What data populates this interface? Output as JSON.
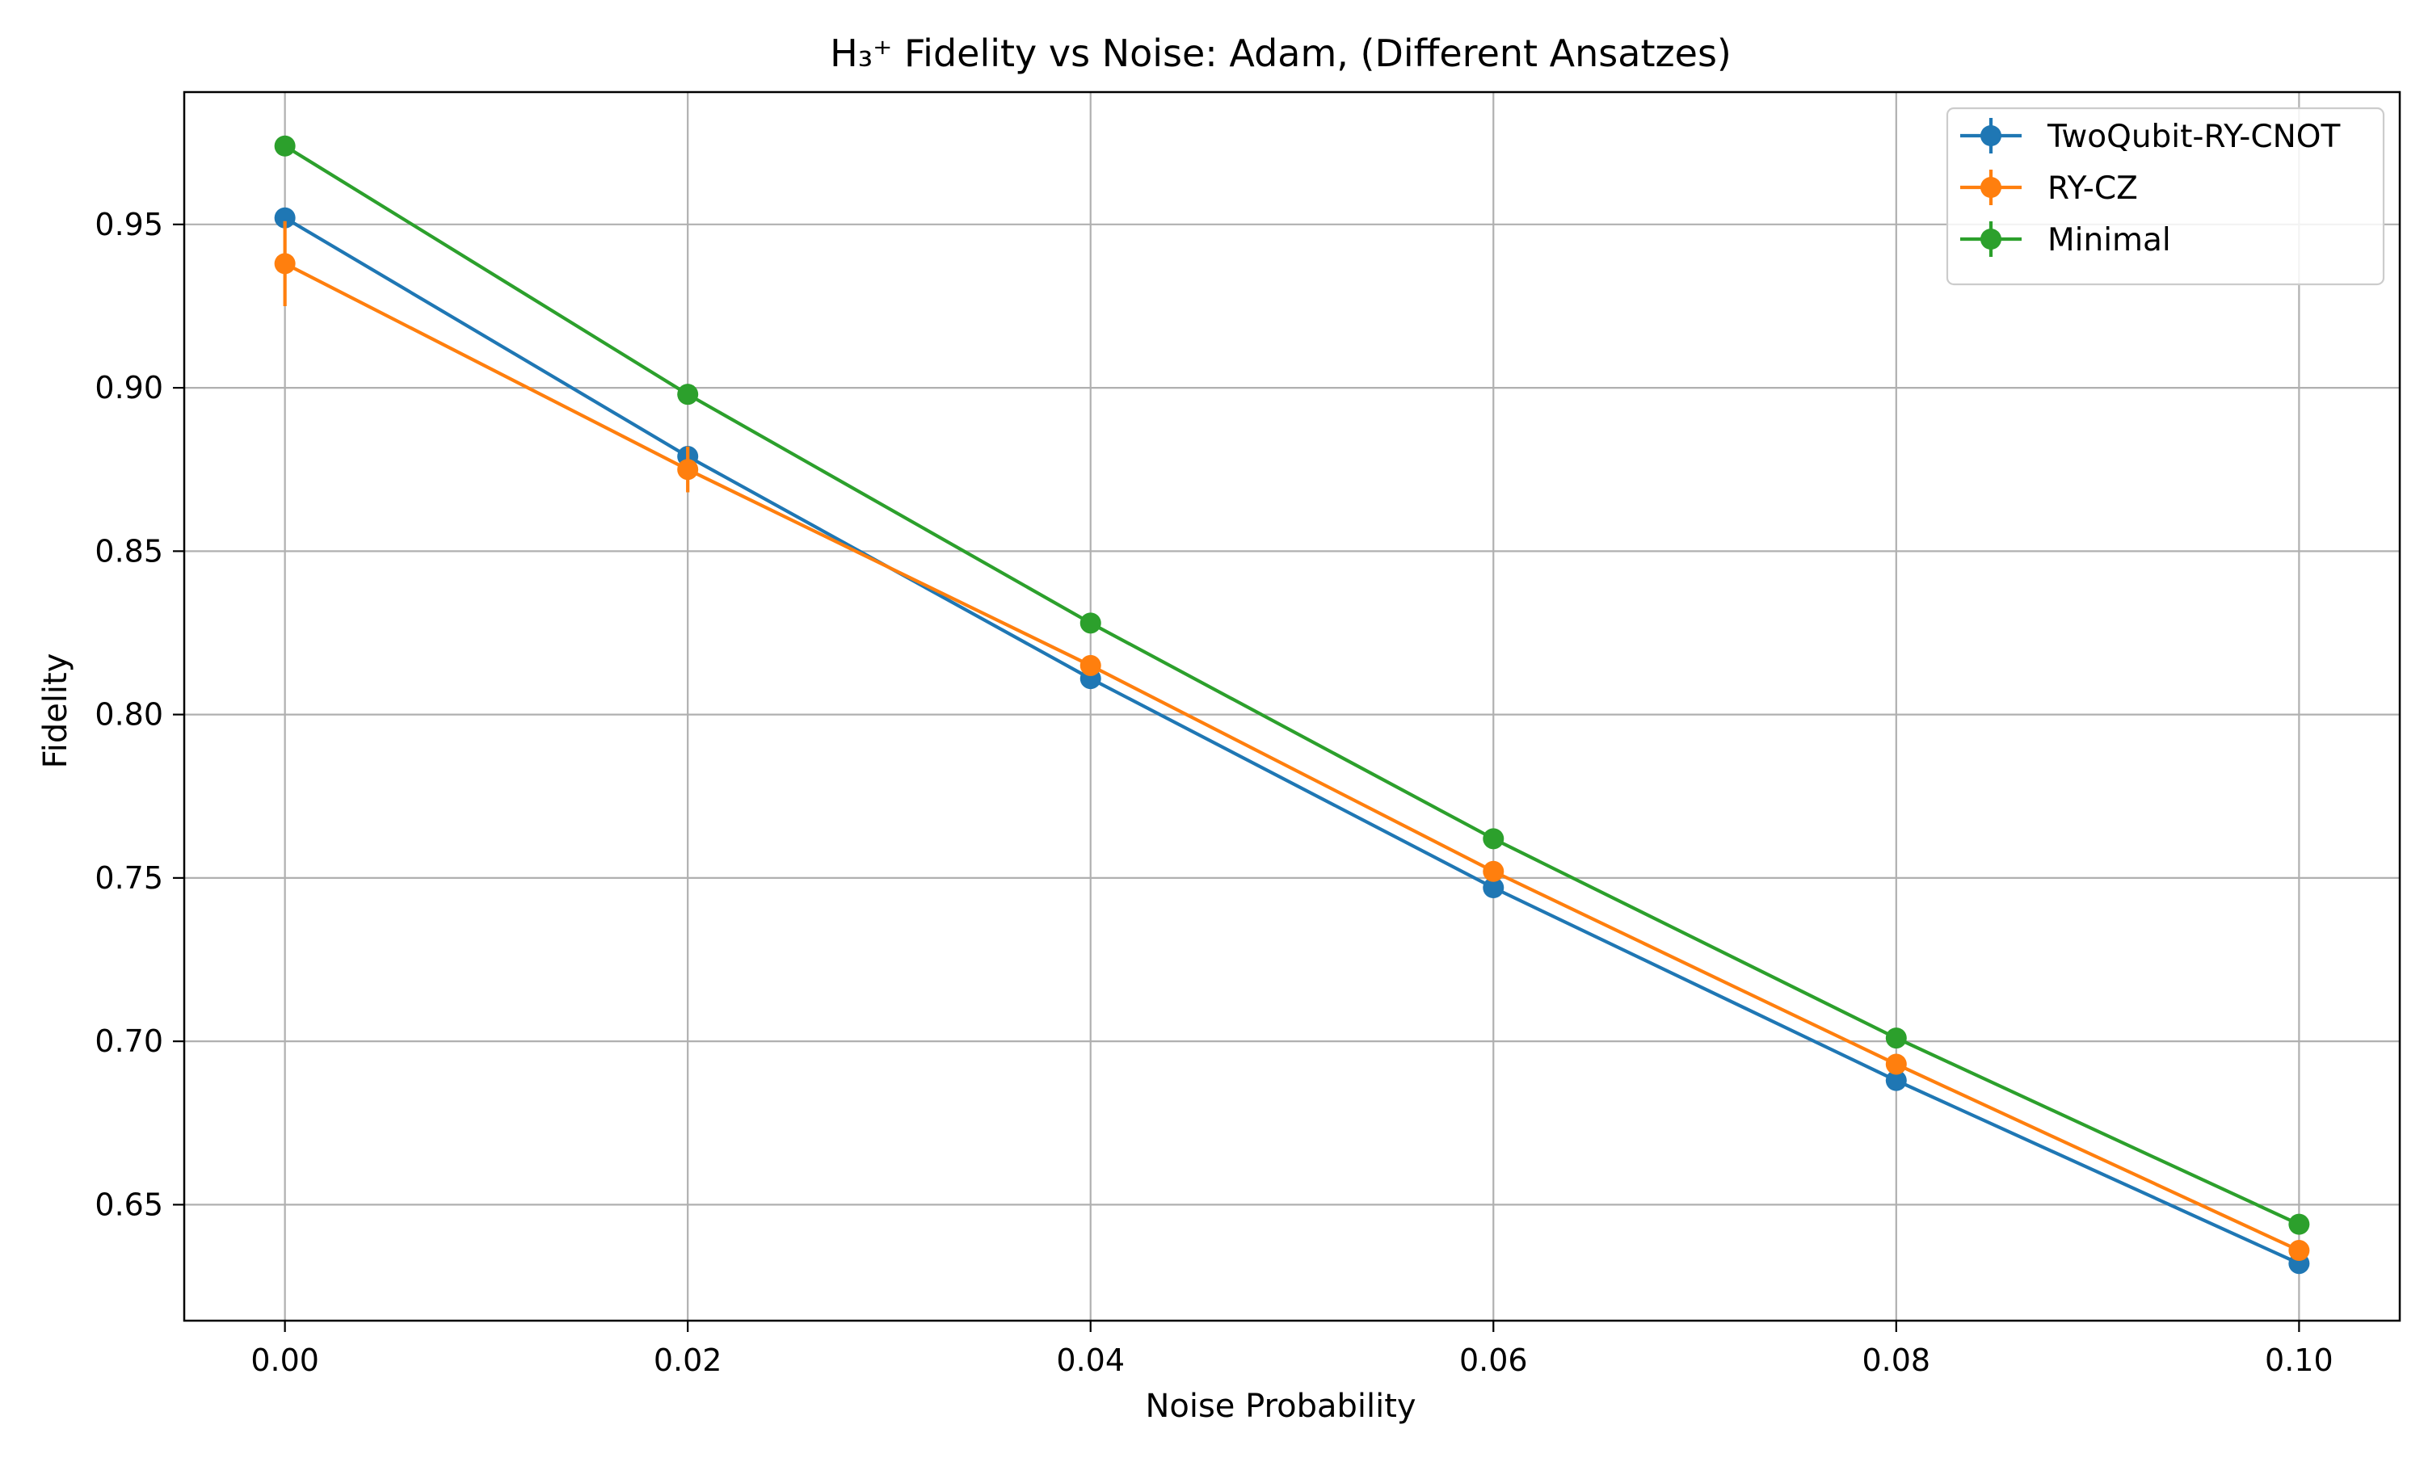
{
  "chart_data": {
    "type": "line",
    "title": "H₃⁺ Fidelity vs Noise: Adam, (Different Ansatzes)",
    "xlabel": "Noise Probability",
    "ylabel": "Fidelity",
    "x": [
      0.0,
      0.02,
      0.04,
      0.06,
      0.08,
      0.1
    ],
    "xlim": [
      -0.005,
      0.105
    ],
    "ylim": [
      0.6145,
      0.9905
    ],
    "xticks": [
      0.0,
      0.02,
      0.04,
      0.06,
      0.08,
      0.1
    ],
    "xtick_labels": [
      "0.00",
      "0.02",
      "0.04",
      "0.06",
      "0.08",
      "0.10"
    ],
    "yticks": [
      0.65,
      0.7,
      0.75,
      0.8,
      0.85,
      0.9,
      0.95
    ],
    "ytick_labels": [
      "0.65",
      "0.70",
      "0.75",
      "0.80",
      "0.85",
      "0.90",
      "0.95"
    ],
    "grid": true,
    "legend_position": "top-right",
    "series": [
      {
        "name": "TwoQubit-RY-CNOT",
        "color": "#1f77b4",
        "values": [
          0.952,
          0.879,
          0.811,
          0.747,
          0.688,
          0.632
        ],
        "errors": [
          0.002,
          0.002,
          0.001,
          0.001,
          0.001,
          0.001
        ]
      },
      {
        "name": "RY-CZ",
        "color": "#ff7f0e",
        "values": [
          0.938,
          0.875,
          0.815,
          0.752,
          0.693,
          0.636
        ],
        "errors": [
          0.013,
          0.007,
          0.002,
          0.001,
          0.001,
          0.001
        ]
      },
      {
        "name": "Minimal",
        "color": "#2ca02c",
        "values": [
          0.974,
          0.898,
          0.828,
          0.762,
          0.701,
          0.644
        ],
        "errors": [
          0.001,
          0.001,
          0.001,
          0.001,
          0.001,
          0.001
        ]
      }
    ]
  }
}
